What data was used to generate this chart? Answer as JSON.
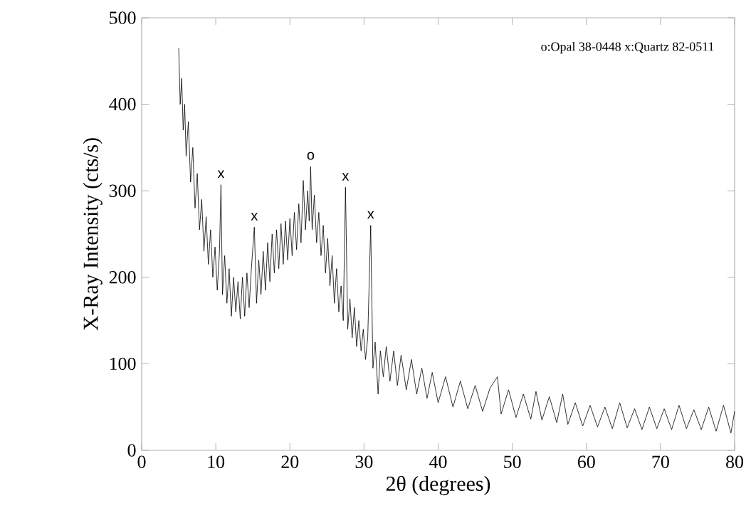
{
  "chart_data": {
    "type": "line",
    "xlabel": "2θ (degrees)",
    "ylabel": "X-Ray Intensity (cts/s)",
    "xlim": [
      0,
      80
    ],
    "ylim": [
      0,
      500
    ],
    "xticks": [
      0,
      10,
      20,
      30,
      40,
      50,
      60,
      70,
      80
    ],
    "yticks": [
      0,
      100,
      200,
      300,
      400,
      500
    ],
    "series": [
      {
        "color": "#000000",
        "x": [
          5.0,
          5.2,
          5.4,
          5.6,
          5.8,
          6.0,
          6.3,
          6.6,
          6.9,
          7.2,
          7.5,
          7.8,
          8.1,
          8.4,
          8.7,
          9.0,
          9.3,
          9.6,
          9.9,
          10.2,
          10.5,
          10.7,
          10.9,
          11.2,
          11.5,
          11.8,
          12.1,
          12.4,
          12.7,
          13.0,
          13.3,
          13.6,
          13.9,
          14.2,
          14.5,
          14.8,
          15.2,
          15.5,
          15.8,
          16.1,
          16.4,
          16.7,
          17.0,
          17.3,
          17.6,
          17.9,
          18.2,
          18.5,
          18.8,
          19.1,
          19.4,
          19.7,
          20.0,
          20.3,
          20.6,
          20.9,
          21.2,
          21.5,
          21.8,
          22.1,
          22.4,
          22.6,
          22.8,
          23.0,
          23.3,
          23.6,
          23.9,
          24.2,
          24.5,
          24.8,
          25.1,
          25.4,
          25.7,
          26.0,
          26.3,
          26.6,
          26.9,
          27.2,
          27.5,
          27.8,
          28.1,
          28.4,
          28.7,
          29.0,
          29.3,
          29.6,
          29.9,
          30.2,
          30.5,
          30.9,
          31.2,
          31.5,
          31.9,
          32.2,
          32.6,
          33.0,
          33.5,
          34.0,
          34.5,
          35.0,
          35.7,
          36.4,
          37.1,
          37.8,
          38.5,
          39.2,
          40.0,
          41.0,
          42.0,
          43.0,
          44.0,
          45.0,
          46.0,
          47.0,
          48.0,
          48.5,
          49.5,
          50.5,
          51.5,
          52.5,
          53.2,
          54.0,
          55.0,
          56.0,
          56.8,
          57.5,
          58.5,
          59.5,
          60.5,
          61.5,
          62.5,
          63.5,
          64.5,
          65.5,
          66.5,
          67.5,
          68.5,
          69.5,
          70.5,
          71.5,
          72.5,
          73.5,
          74.5,
          75.5,
          76.5,
          77.5,
          78.5,
          79.5,
          80.0
        ],
        "values": [
          465,
          400,
          430,
          370,
          400,
          340,
          380,
          310,
          350,
          280,
          320,
          255,
          290,
          230,
          270,
          215,
          255,
          200,
          235,
          185,
          230,
          307,
          180,
          225,
          170,
          210,
          155,
          200,
          160,
          195,
          152,
          200,
          155,
          205,
          165,
          210,
          258,
          170,
          220,
          180,
          230,
          185,
          240,
          195,
          250,
          205,
          255,
          210,
          262,
          215,
          265,
          220,
          268,
          225,
          275,
          232,
          285,
          240,
          312,
          255,
          300,
          265,
          328,
          255,
          295,
          240,
          275,
          225,
          260,
          205,
          245,
          190,
          225,
          170,
          210,
          160,
          190,
          150,
          304,
          140,
          175,
          130,
          165,
          120,
          150,
          115,
          140,
          105,
          130,
          260,
          95,
          125,
          65,
          115,
          85,
          120,
          80,
          115,
          75,
          110,
          70,
          105,
          65,
          95,
          60,
          90,
          55,
          85,
          50,
          80,
          48,
          75,
          45,
          72,
          85,
          42,
          70,
          38,
          65,
          36,
          68,
          35,
          62,
          32,
          65,
          30,
          55,
          28,
          52,
          27,
          50,
          25,
          55,
          26,
          48,
          24,
          50,
          25,
          48,
          24,
          52,
          25,
          47,
          24,
          50,
          22,
          52,
          20,
          45
        ]
      }
    ],
    "annotations": [
      {
        "text": "x",
        "x": 10.7,
        "y": 307
      },
      {
        "text": "x",
        "x": 15.2,
        "y": 258
      },
      {
        "text": "o",
        "x": 22.8,
        "y": 328
      },
      {
        "text": "x",
        "x": 27.5,
        "y": 304
      },
      {
        "text": "x",
        "x": 30.9,
        "y": 260
      },
      "o:Opal 38-0448 x:Quartz 82-0511"
    ]
  }
}
